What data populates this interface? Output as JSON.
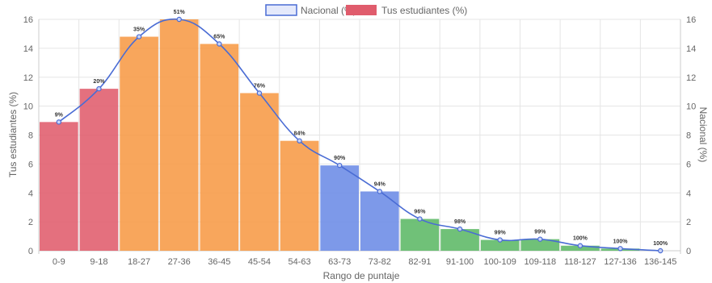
{
  "chart_data": {
    "type": "bar",
    "xlabel": "Rango de puntaje",
    "ylabel_left": "Tus estudiantes (%)",
    "ylabel_right": "Nacional (%)",
    "ylim": [
      0,
      16
    ],
    "yticks": [
      0,
      2,
      4,
      6,
      8,
      10,
      12,
      14,
      16
    ],
    "grid": true,
    "legend_position": "top-center",
    "categories": [
      "0-9",
      "9-18",
      "18-27",
      "27-36",
      "36-45",
      "45-54",
      "54-63",
      "63-73",
      "73-82",
      "82-91",
      "91-100",
      "100-109",
      "109-118",
      "118-127",
      "127-136",
      "136-145"
    ],
    "series": [
      {
        "name": "Nacional (%)",
        "type": "line",
        "axis": "right",
        "color": "#4a6cd4",
        "values": [
          8.9,
          11.2,
          14.8,
          16.0,
          14.3,
          10.9,
          7.6,
          5.9,
          4.1,
          2.2,
          1.5,
          0.75,
          0.8,
          0.35,
          0.15,
          0.0
        ]
      },
      {
        "name": "Tus estudiantes (%)",
        "type": "bar",
        "axis": "left",
        "values": [
          8.9,
          11.2,
          14.8,
          16.0,
          14.3,
          10.9,
          7.6,
          5.9,
          4.1,
          2.2,
          1.5,
          0.75,
          0.8,
          0.35,
          0.15,
          0.0
        ],
        "colors": [
          "#e05c6c",
          "#e05c6c",
          "#f79a45",
          "#f79a45",
          "#f79a45",
          "#f79a45",
          "#f79a45",
          "#6b8be6",
          "#6b8be6",
          "#5cb865",
          "#5cb865",
          "#5cb865",
          "#5cb865",
          "#5cb865",
          "#5cb865",
          "#5cb865"
        ]
      }
    ],
    "cumulative_labels": [
      "9%",
      "20%",
      "35%",
      "51%",
      "65%",
      "76%",
      "84%",
      "90%",
      "94%",
      "96%",
      "98%",
      "99%",
      "99%",
      "100%",
      "100%",
      "100%"
    ]
  }
}
